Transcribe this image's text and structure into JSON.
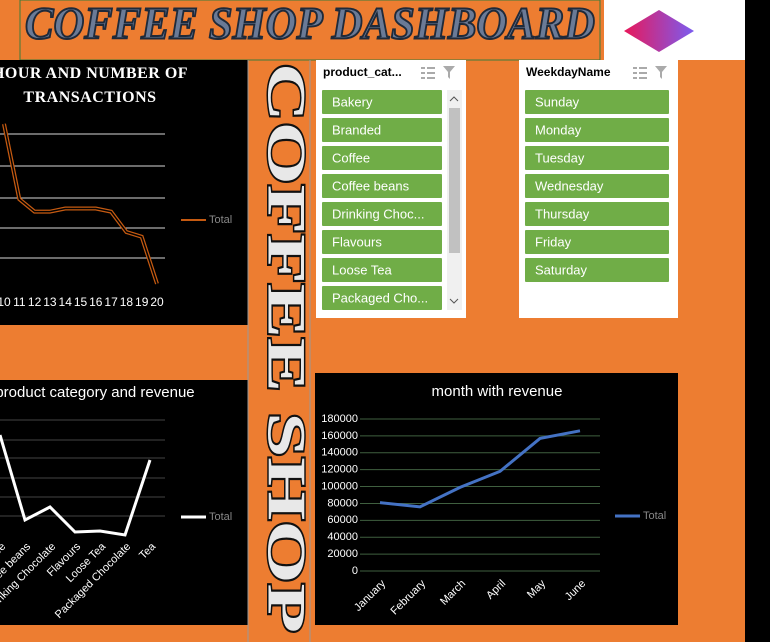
{
  "header": {
    "title": "COFFEE SHOP DASHBOARD",
    "side_title": "COFFEE SHOP"
  },
  "slicers": [
    {
      "title": "product_cat...",
      "items": [
        "Bakery",
        "Branded",
        "Coffee",
        "Coffee beans",
        "Drinking Choc...",
        "Flavours",
        "Loose Tea",
        "Packaged Cho..."
      ]
    },
    {
      "title": "WeekdayName",
      "items": [
        "Sunday",
        "Monday",
        "Tuesday",
        "Wednesday",
        "Thursday",
        "Friday",
        "Saturday"
      ]
    }
  ],
  "chart_data": [
    {
      "type": "line",
      "title": "HOUR AND NUMBER OF TRANSACTIONS",
      "categories": [
        "10",
        "11",
        "12",
        "13",
        "14",
        "15",
        "16",
        "17",
        "18",
        "19",
        "20"
      ],
      "series": [
        {
          "name": "Total",
          "color": "#c55a11",
          "values": [
            5.3,
            2.9,
            2.5,
            2.5,
            2.6,
            2.6,
            2.6,
            2.5,
            1.85,
            1.7,
            0.2
          ]
        }
      ],
      "ylim": [
        0,
        6
      ]
    },
    {
      "type": "line",
      "title": "product category and revenue",
      "categories": [
        "Coffee",
        "Coffee beans",
        "Drinking Chocolate",
        "Flavours",
        "Loose Tea",
        "Packaged Chocolate",
        "Tea"
      ],
      "series": [
        {
          "name": "Total",
          "color": "#ffffff",
          "values": [
            100,
            15,
            28,
            3,
            4,
            0,
            75
          ]
        }
      ],
      "ylim": [
        0,
        120
      ]
    },
    {
      "type": "line",
      "title": "month with revenue",
      "categories": [
        "January",
        "February",
        "March",
        "April",
        "May",
        "June"
      ],
      "series": [
        {
          "name": "Total",
          "color": "#4472c4",
          "values": [
            81000,
            76000,
            99000,
            118000,
            157000,
            166000
          ]
        }
      ],
      "ylim": [
        0,
        180000
      ],
      "yticks": [
        0,
        20000,
        40000,
        60000,
        80000,
        100000,
        120000,
        140000,
        160000,
        180000
      ],
      "grid": true
    }
  ]
}
